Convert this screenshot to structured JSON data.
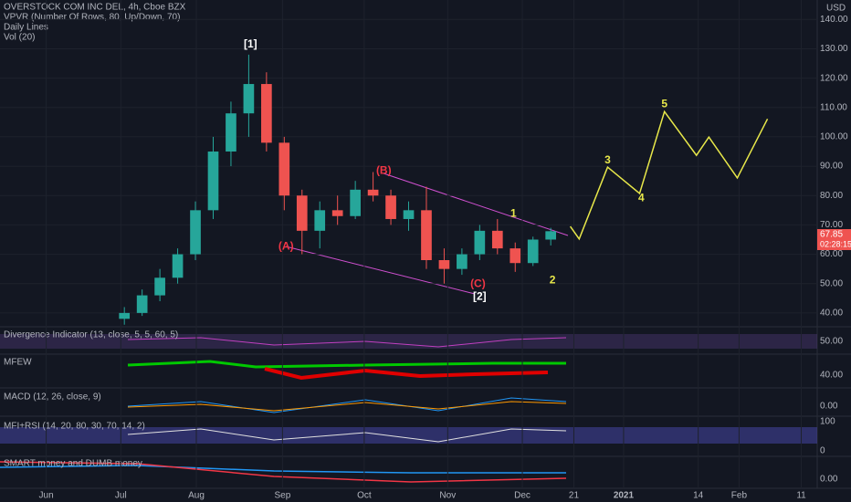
{
  "header": {
    "title": "OVERSTOCK COM INC DEL, 4h, Cboe BZX",
    "indicators": [
      "VPVR (Number Of Rows, 80, Up/Down, 70)",
      "Daily Lines",
      "Vol (20)"
    ],
    "currency": "USD",
    "countdown": "02:28:15"
  },
  "panes": [
    {
      "title": "Divergence Indicator (13, close, 5, 5, 60, 5)",
      "ticks": [
        "50.00"
      ]
    },
    {
      "title": "MFEW",
      "ticks": [
        "40.00"
      ]
    },
    {
      "title": "MACD (12, 26, close, 9)",
      "ticks": [
        "0.00"
      ]
    },
    {
      "title": "MFI+RSI (14, 20, 80, 30, 70, 14, 2)",
      "ticks": [
        "100",
        "0"
      ]
    },
    {
      "title": "SMART money and DUMB money",
      "ticks": [
        "0.00"
      ]
    }
  ],
  "chart_data": {
    "type": "candlestick",
    "x": [
      4.5,
      5.5,
      6.5,
      7.5,
      8.5,
      9.5,
      10.5,
      11.5,
      12.5,
      13.5,
      14.5,
      15.5,
      16.5,
      17.5,
      18.5,
      19.5,
      20.5,
      21.5,
      22.5,
      23.5,
      24.5,
      25.5,
      26.5,
      27.5,
      28.5
    ],
    "open": [
      38,
      40,
      46,
      52,
      60,
      75,
      95,
      108,
      118,
      98,
      80,
      68,
      75,
      73,
      82,
      80,
      72,
      75,
      58,
      55,
      60,
      68,
      62,
      57,
      65
    ],
    "high": [
      42,
      48,
      55,
      62,
      78,
      100,
      112,
      128,
      122,
      100,
      82,
      78,
      80,
      85,
      88,
      82,
      78,
      83,
      62,
      62,
      70,
      72,
      64,
      66,
      69
    ],
    "low": [
      36,
      39,
      44,
      50,
      58,
      72,
      90,
      100,
      95,
      75,
      60,
      62,
      70,
      72,
      78,
      70,
      68,
      55,
      50,
      53,
      58,
      60,
      54,
      56,
      63
    ],
    "close": [
      40,
      46,
      52,
      60,
      75,
      95,
      108,
      118,
      98,
      80,
      68,
      75,
      73,
      82,
      80,
      72,
      75,
      58,
      55,
      60,
      68,
      62,
      57,
      65,
      67.85
    ],
    "up_color": "#26a69a",
    "down_color": "#ef5350",
    "xlim": [
      -2.5,
      45.4
    ],
    "ylim": [
      35.3,
      146
    ],
    "yticks": [
      {
        "value": 40,
        "label": "40.00"
      },
      {
        "value": 50,
        "label": "50.00"
      },
      {
        "value": 60,
        "label": "60.00"
      },
      {
        "value": 70,
        "label": "70.00"
      },
      {
        "value": 80,
        "label": "80.00"
      },
      {
        "value": 90,
        "label": "90.00"
      },
      {
        "value": 100,
        "label": "100.00"
      },
      {
        "value": 110,
        "label": "110.00"
      },
      {
        "value": 120,
        "label": "120.00"
      },
      {
        "value": 130,
        "label": "130.00"
      },
      {
        "value": 140,
        "label": "140.00"
      }
    ],
    "xticks": [
      {
        "value": 0.1,
        "label": "Jun"
      },
      {
        "value": 4.3,
        "label": "Jul"
      },
      {
        "value": 8.55,
        "label": "Aug"
      },
      {
        "value": 13.4,
        "label": "Sep"
      },
      {
        "value": 18.0,
        "label": "Oct"
      },
      {
        "value": 22.7,
        "label": "Nov"
      },
      {
        "value": 26.9,
        "label": "Dec"
      },
      {
        "value": 29.8,
        "label": "21"
      },
      {
        "value": 32.6,
        "label": "2021"
      },
      {
        "value": 36.8,
        "label": "14"
      },
      {
        "value": 39.1,
        "label": "Feb"
      },
      {
        "value": 42.6,
        "label": "11"
      }
    ],
    "grid": true,
    "projection": {
      "color": "#e8e84a",
      "x": [
        29.6,
        30.1,
        31.7,
        33.5,
        34.9,
        36.7,
        37.4,
        39.0,
        40.7
      ],
      "y": [
        69.5,
        65.2,
        89.7,
        80.7,
        108.6,
        93.7,
        99.9,
        86.0,
        106.1
      ]
    },
    "annotations": [
      {
        "text": "[1]",
        "x": 11.6,
        "y": 131.5,
        "color": "#ffffff"
      },
      {
        "text": "(A)",
        "x": 13.6,
        "y": 62.6,
        "color": "#f23645"
      },
      {
        "text": "(B)",
        "x": 19.1,
        "y": 88.4,
        "color": "#f23645"
      },
      {
        "text": "(C)",
        "x": 24.4,
        "y": 49.8,
        "color": "#f23645"
      },
      {
        "text": "[2]",
        "x": 24.5,
        "y": 45.4,
        "color": "#ffffff"
      },
      {
        "text": "1",
        "x": 26.4,
        "y": 73.8,
        "color": "#e8e84a"
      },
      {
        "text": "2",
        "x": 28.6,
        "y": 51.1,
        "color": "#e8e84a"
      },
      {
        "text": "3",
        "x": 31.7,
        "y": 91.9,
        "color": "#e8e84a"
      },
      {
        "text": "4",
        "x": 33.6,
        "y": 79.0,
        "color": "#e8e84a"
      },
      {
        "text": "5",
        "x": 34.9,
        "y": 111.1,
        "color": "#e8e84a"
      }
    ]
  }
}
